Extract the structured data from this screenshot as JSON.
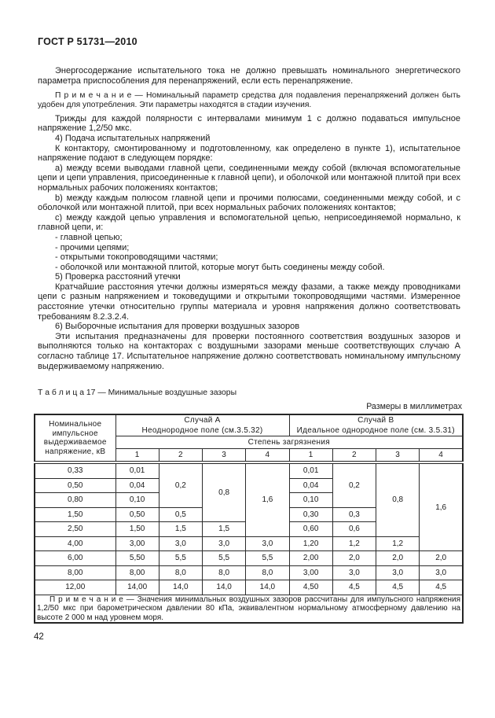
{
  "doc": {
    "header": "ГОСТ Р 51731—2010",
    "page_number": "42"
  },
  "paragraphs": [
    "Энергосодержание испытательного тока не должно превышать номинального энергетического параметра приспособления для перенапряжений, если есть перенапряжение.",
    "П р и м е ч а н и е — Номинальный параметр средства для подавления перенапряжений должен быть удобен для употребления. Эти параметры находятся в стадии изучения.",
    "Трижды для каждой полярности с интервалами минимум 1 с должно подаваться импульсное напряжение 1,2/50 мкс.",
    "4) Подача испытательных напряжений",
    "К контактору, смонтированному и подготовленному, как определено в пункте 1),  испытательное напряжение подают в следующем порядке:",
    "а) между всеми выводами главной цепи, соединенными между собой (включая вспомогательные цепи и цепи управления, присоединенные к главной цепи), и оболочкой или монтажной плитой при всех нормальных рабочих положениях контактов;",
    "b) между каждым полюсом главной цепи и прочими полюсами, соединенными между собой, и с оболочкой или монтажной плитой, при всех нормальных рабочих положениях контактов;",
    "с) между каждой цепью управления и вспомогательной цепью, неприсоединяемой нормально, к главной цепи, и:",
    "- главной цепью;",
    "- прочими цепями;",
    "- открытыми токопроводящими частями;",
    "- оболочкой или монтажной плитой, которые могут быть соединены между собой.",
    "5) Проверка расстояний утечки",
    "Кратчайшие расстояния утечки должны измеряться между фазами, а также между проводниками цепи с разным напряжением и токоведущими и открытыми токопроводящими частями. Измеренное расстояние утечки относительно группы материала и уровня напряжения должно соответствовать требованиям 8.2.3.2.4.",
    "6) Выборочные испытания для проверки воздушных зазоров",
    "Эти испытания предназначены для проверки постоянного соответствия воздушных зазоров и выполняются только на контакторах с воздушными зазорами меньше соответствующих случаю А согласно таблице 17. Испытательное напряжение должно соответствовать номинальному импульсному выдерживаемому напряжению."
  ],
  "table": {
    "caption": "Т а б л и ц а  17 —  Минимальные воздушные зазоры",
    "units_note": "Размеры в миллиметрах",
    "voltage_header": "Номинальное импульсное выдерживаемое напряжение, кВ",
    "case_a_title": "Случай А",
    "case_a_subtitle": "Неоднородное поле (см.3.5.32)",
    "case_b_title": "Случай В",
    "case_b_subtitle": "Идеальное однородное поле (см. 3.5.31)",
    "pollution_header": "Степень загрязнения",
    "degrees": [
      "1",
      "2",
      "3",
      "4",
      "1",
      "2",
      "3",
      "4"
    ],
    "rows": [
      [
        "0,33",
        "0,01",
        "0,2",
        "0,8",
        "1,6",
        "0,01",
        "0,2",
        "0,8",
        "1,6"
      ],
      [
        "0,50",
        "0,04",
        "0,04"
      ],
      [
        "0,80",
        "0,10",
        "0,10"
      ],
      [
        "1,50",
        "0,50",
        "0,5",
        "0,30",
        "0,3"
      ],
      [
        "2,50",
        "1,50",
        "1,5",
        "1,5",
        "0,60",
        "0,6"
      ],
      [
        "4,00",
        "3,00",
        "3,0",
        "3,0",
        "3,0",
        "1,20",
        "1,2",
        "1,2"
      ],
      [
        "6,00",
        "5,50",
        "5,5",
        "5,5",
        "5,5",
        "2,00",
        "2,0",
        "2,0",
        "2,0"
      ],
      [
        "8,00",
        "8,00",
        "8,0",
        "8,0",
        "8,0",
        "3,00",
        "3,0",
        "3,0",
        "3,0"
      ],
      [
        "12,00",
        "14,00",
        "14,0",
        "14,0",
        "14,0",
        "4,50",
        "4,5",
        "4,5",
        "4,5"
      ]
    ],
    "note": "П р и м е ч а н и е — Значения минимальных воздушных зазоров рассчитаны для импульсного напряжения 1,2/50 мкс при барометрическом давлении 80 кПа, эквивалентном нормальному атмосферному давлению на высоте 2 000 м над уровнем моря."
  }
}
